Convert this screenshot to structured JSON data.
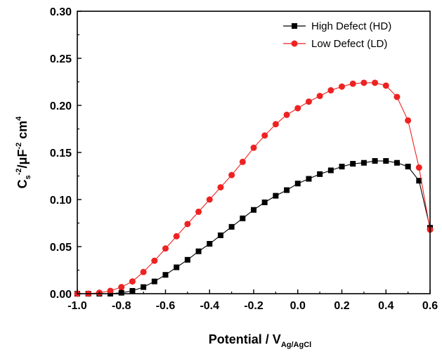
{
  "chart_data": {
    "type": "line",
    "xlabel": {
      "main": "Potential / V",
      "sub": "Ag/AgCl"
    },
    "ylabel": {
      "c": "C",
      "s_sub": "s",
      "sup1": "-2",
      "mid": "/μF",
      "sup2": "-2",
      "cm": " cm",
      "sup3": "4"
    },
    "xlim": [
      -1.0,
      0.6
    ],
    "ylim": [
      0.0,
      0.3
    ],
    "xticks": [
      "-1.0",
      "-0.8",
      "-0.6",
      "-0.4",
      "-0.2",
      "0.0",
      "0.2",
      "0.4",
      "0.6"
    ],
    "yticks": [
      "0.00",
      "0.05",
      "0.10",
      "0.15",
      "0.20",
      "0.25",
      "0.30"
    ],
    "grid": false,
    "legend_position": "top-right",
    "series": [
      {
        "name": "High Defect (HD)",
        "color": "#000000",
        "marker": "square",
        "x": [
          -1.0,
          -0.95,
          -0.9,
          -0.85,
          -0.8,
          -0.75,
          -0.7,
          -0.65,
          -0.6,
          -0.55,
          -0.5,
          -0.45,
          -0.4,
          -0.35,
          -0.3,
          -0.25,
          -0.2,
          -0.15,
          -0.1,
          -0.05,
          0.0,
          0.05,
          0.1,
          0.15,
          0.2,
          0.25,
          0.3,
          0.35,
          0.4,
          0.45,
          0.5,
          0.55,
          0.6
        ],
        "y": [
          0.0,
          0.0,
          0.0,
          0.0,
          0.001,
          0.003,
          0.007,
          0.013,
          0.02,
          0.028,
          0.036,
          0.045,
          0.053,
          0.062,
          0.071,
          0.08,
          0.089,
          0.097,
          0.104,
          0.11,
          0.117,
          0.122,
          0.127,
          0.131,
          0.135,
          0.138,
          0.139,
          0.141,
          0.141,
          0.139,
          0.135,
          0.12,
          0.07
        ]
      },
      {
        "name": "Low Defect (LD)",
        "color": "#ee2222",
        "marker": "circle",
        "x": [
          -1.0,
          -0.95,
          -0.9,
          -0.85,
          -0.8,
          -0.75,
          -0.7,
          -0.65,
          -0.6,
          -0.55,
          -0.5,
          -0.45,
          -0.4,
          -0.35,
          -0.3,
          -0.25,
          -0.2,
          -0.15,
          -0.1,
          -0.05,
          0.0,
          0.05,
          0.1,
          0.15,
          0.2,
          0.25,
          0.3,
          0.35,
          0.4,
          0.45,
          0.5,
          0.55,
          0.6
        ],
        "y": [
          0.0,
          0.0,
          0.001,
          0.003,
          0.007,
          0.013,
          0.023,
          0.035,
          0.048,
          0.061,
          0.074,
          0.087,
          0.1,
          0.113,
          0.126,
          0.14,
          0.155,
          0.168,
          0.18,
          0.19,
          0.197,
          0.204,
          0.21,
          0.216,
          0.22,
          0.223,
          0.224,
          0.224,
          0.221,
          0.209,
          0.184,
          0.134,
          0.068
        ]
      }
    ]
  }
}
